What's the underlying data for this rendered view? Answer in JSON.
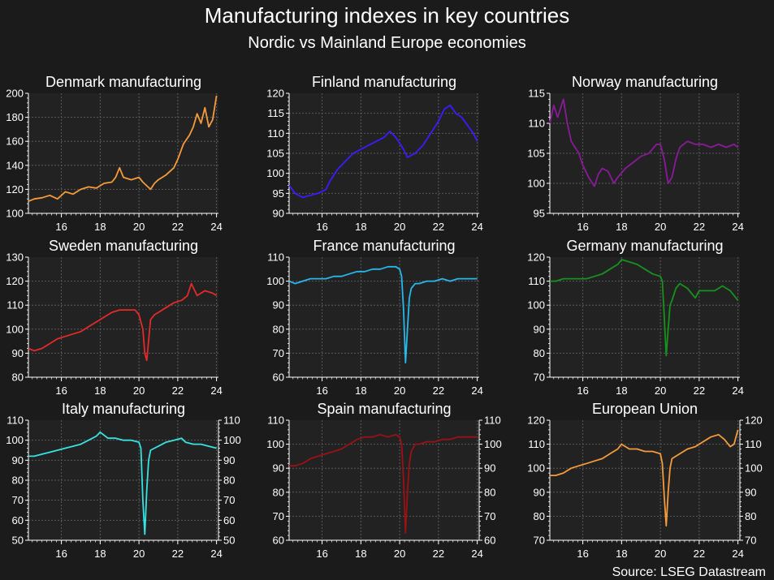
{
  "header": {
    "title": "Manufacturing indexes in key countries",
    "subtitle": "Nordic vs Mainland Europe economies"
  },
  "footer": {
    "source": "Source: LSEG Datastream"
  },
  "colors": {
    "background": "#1b1b1b",
    "plot_background": "#222222",
    "grid": "#5a5a5a",
    "text": "#ffffff"
  },
  "chart_data": [
    {
      "type": "line",
      "title": "Denmark manufacturing",
      "color": "#f59b3b",
      "ylim": [
        100,
        200
      ],
      "yticks": [
        100,
        120,
        140,
        160,
        180,
        200
      ],
      "xlim": [
        14.3,
        24.1
      ],
      "xticks": [
        16,
        18,
        20,
        22,
        24
      ],
      "right_axis": false,
      "grid": true,
      "x": [
        14.3,
        14.6,
        15.0,
        15.4,
        15.8,
        16.2,
        16.6,
        17.0,
        17.4,
        17.8,
        18.2,
        18.6,
        18.8,
        19.0,
        19.2,
        19.6,
        20.0,
        20.2,
        20.4,
        20.6,
        20.8,
        21.0,
        21.4,
        21.8,
        22.0,
        22.3,
        22.6,
        22.8,
        23.0,
        23.2,
        23.4,
        23.6,
        23.8,
        24.0
      ],
      "y": [
        110,
        112,
        113,
        115,
        112,
        118,
        116,
        120,
        122,
        121,
        125,
        126,
        130,
        138,
        130,
        128,
        130,
        126,
        123,
        120,
        125,
        128,
        132,
        138,
        145,
        158,
        165,
        172,
        183,
        175,
        188,
        172,
        178,
        198
      ]
    },
    {
      "type": "line",
      "title": "Finland manufacturing",
      "color": "#3a1cff",
      "ylim": [
        90,
        120
      ],
      "yticks": [
        90,
        95,
        100,
        105,
        110,
        115,
        120
      ],
      "xlim": [
        14.3,
        24.1
      ],
      "xticks": [
        16,
        18,
        20,
        22,
        24
      ],
      "right_axis": false,
      "grid": true,
      "x": [
        14.3,
        14.6,
        15.0,
        15.4,
        15.8,
        16.2,
        16.4,
        16.8,
        17.2,
        17.6,
        18.0,
        18.4,
        18.8,
        19.2,
        19.5,
        19.8,
        20.2,
        20.4,
        20.8,
        21.2,
        21.6,
        22.0,
        22.3,
        22.6,
        22.9,
        23.2,
        23.5,
        23.8,
        24.0
      ],
      "y": [
        97,
        95,
        94,
        94.5,
        95,
        96,
        98,
        101,
        103,
        105,
        106,
        107,
        108,
        109,
        110.5,
        109,
        106,
        104,
        105,
        107,
        110,
        113,
        116,
        117,
        115,
        114,
        112,
        110,
        108
      ]
    },
    {
      "type": "line",
      "title": "Norway manufacturing",
      "color": "#8b1a9b",
      "ylim": [
        95,
        115
      ],
      "yticks": [
        95,
        100,
        105,
        110,
        115
      ],
      "xlim": [
        14.3,
        24.1
      ],
      "xticks": [
        16,
        18,
        20,
        22,
        24
      ],
      "right_axis": false,
      "grid": true,
      "x": [
        14.3,
        14.5,
        14.7,
        15.0,
        15.2,
        15.4,
        15.6,
        15.8,
        16.0,
        16.3,
        16.6,
        16.8,
        17.0,
        17.3,
        17.6,
        17.8,
        18.2,
        18.6,
        19.0,
        19.4,
        19.8,
        20.0,
        20.2,
        20.4,
        20.6,
        20.8,
        21.0,
        21.4,
        21.8,
        22.2,
        22.6,
        23.0,
        23.4,
        23.8,
        24.0
      ],
      "y": [
        110,
        113,
        111,
        114,
        110,
        107,
        106,
        105,
        103,
        101,
        99.5,
        101.5,
        102.5,
        102,
        100,
        101,
        102.5,
        103.5,
        104.5,
        105,
        106.5,
        106.5,
        104,
        100,
        101,
        104,
        106,
        107,
        106.5,
        106.5,
        106,
        106.5,
        106,
        106.5,
        106
      ]
    },
    {
      "type": "line",
      "title": "Sweden manufacturing",
      "color": "#e42a2a",
      "ylim": [
        80,
        130
      ],
      "yticks": [
        80,
        90,
        100,
        110,
        120,
        130
      ],
      "xlim": [
        14.3,
        24.1
      ],
      "xticks": [
        16,
        18,
        20,
        22,
        24
      ],
      "right_axis": false,
      "grid": true,
      "x": [
        14.3,
        14.6,
        15.0,
        15.4,
        15.8,
        16.2,
        16.6,
        17.0,
        17.4,
        17.8,
        18.2,
        18.6,
        19.0,
        19.4,
        19.8,
        20.0,
        20.2,
        20.3,
        20.4,
        20.6,
        20.8,
        21.0,
        21.4,
        21.8,
        22.2,
        22.5,
        22.7,
        23.0,
        23.4,
        23.8,
        24.0
      ],
      "y": [
        92,
        91,
        92,
        94,
        96,
        97,
        98,
        99,
        101,
        103,
        105,
        107,
        108,
        108,
        108,
        106,
        100,
        90,
        87,
        104,
        106,
        107,
        109,
        111,
        112,
        114,
        119,
        114,
        116,
        115,
        114
      ]
    },
    {
      "type": "line",
      "title": "France manufacturing",
      "color": "#27b8ec",
      "ylim": [
        60,
        110
      ],
      "yticks": [
        60,
        70,
        80,
        90,
        100,
        110
      ],
      "xlim": [
        14.3,
        24.1
      ],
      "xticks": [
        16,
        18,
        20,
        22,
        24
      ],
      "right_axis": false,
      "grid": true,
      "x": [
        14.3,
        14.6,
        15.0,
        15.4,
        15.8,
        16.2,
        16.6,
        17.0,
        17.4,
        17.8,
        18.2,
        18.6,
        19.0,
        19.4,
        19.8,
        20.0,
        20.1,
        20.2,
        20.3,
        20.4,
        20.5,
        20.6,
        20.8,
        21.0,
        21.4,
        21.8,
        22.2,
        22.6,
        23.0,
        23.4,
        23.8,
        24.0
      ],
      "y": [
        100,
        99,
        100,
        101,
        101,
        101,
        102,
        102,
        103,
        104,
        104,
        105,
        105,
        106,
        106,
        105,
        102,
        88,
        66,
        80,
        93,
        97,
        99,
        99,
        100,
        100,
        101,
        100,
        101,
        101,
        101,
        101
      ]
    },
    {
      "type": "line",
      "title": "Germany manufacturing",
      "color": "#16921d",
      "ylim": [
        70,
        120
      ],
      "yticks": [
        70,
        80,
        90,
        100,
        110,
        120
      ],
      "xlim": [
        14.3,
        24.1
      ],
      "xticks": [
        16,
        18,
        20,
        22,
        24
      ],
      "right_axis": false,
      "grid": true,
      "x": [
        14.3,
        14.6,
        15.0,
        15.4,
        15.8,
        16.2,
        16.6,
        17.0,
        17.4,
        17.8,
        18.0,
        18.4,
        18.8,
        19.2,
        19.6,
        20.0,
        20.1,
        20.2,
        20.3,
        20.4,
        20.5,
        20.6,
        20.8,
        21.0,
        21.4,
        21.8,
        22.0,
        22.4,
        22.8,
        23.2,
        23.6,
        24.0
      ],
      "y": [
        110,
        110,
        111,
        111,
        111,
        111,
        112,
        113,
        115,
        117,
        119,
        118,
        117,
        115,
        113,
        112,
        110,
        95,
        79,
        90,
        100,
        102,
        107,
        109,
        107,
        103,
        106,
        106,
        106,
        108,
        106,
        102
      ]
    },
    {
      "type": "line",
      "title": "Italy manufacturing",
      "color": "#36e3e3",
      "ylim": [
        50,
        110
      ],
      "yticks": [
        50,
        60,
        70,
        80,
        90,
        100,
        110
      ],
      "xlim": [
        14.3,
        24.1
      ],
      "xticks": [
        16,
        18,
        20,
        22,
        24
      ],
      "right_axis": true,
      "grid": true,
      "x": [
        14.3,
        14.6,
        15.0,
        15.4,
        15.8,
        16.2,
        16.6,
        17.0,
        17.4,
        17.8,
        18.0,
        18.4,
        18.8,
        19.2,
        19.6,
        20.0,
        20.1,
        20.2,
        20.3,
        20.4,
        20.5,
        20.6,
        20.8,
        21.0,
        21.4,
        21.8,
        22.2,
        22.4,
        22.8,
        23.2,
        23.6,
        24.0
      ],
      "y": [
        92,
        92,
        93,
        94,
        95,
        96,
        97,
        98,
        100,
        102,
        104,
        101,
        101,
        100,
        100,
        99,
        96,
        70,
        53,
        75,
        90,
        95,
        96,
        97,
        99,
        100,
        101,
        99,
        98,
        98,
        97,
        96
      ]
    },
    {
      "type": "line",
      "title": "Spain manufacturing",
      "color": "#9c1115",
      "ylim": [
        60,
        110
      ],
      "yticks": [
        60,
        70,
        80,
        90,
        100,
        110
      ],
      "xlim": [
        14.3,
        24.1
      ],
      "xticks": [
        16,
        18,
        20,
        22,
        24
      ],
      "right_axis": true,
      "grid": true,
      "x": [
        14.3,
        14.6,
        15.0,
        15.4,
        15.8,
        16.2,
        16.6,
        17.0,
        17.4,
        17.8,
        18.2,
        18.6,
        19.0,
        19.4,
        19.8,
        20.0,
        20.1,
        20.2,
        20.3,
        20.4,
        20.5,
        20.6,
        20.8,
        21.0,
        21.4,
        21.8,
        22.2,
        22.6,
        23.0,
        23.4,
        23.8,
        24.0
      ],
      "y": [
        91,
        91,
        92,
        94,
        95,
        96,
        97,
        98,
        100,
        102,
        103,
        103,
        104,
        103,
        104,
        103,
        100,
        85,
        63,
        80,
        92,
        97,
        100,
        100,
        101,
        101,
        102,
        102,
        103,
        103,
        103,
        103
      ]
    },
    {
      "type": "line",
      "title": "European Union",
      "color": "#f59b3b",
      "ylim": [
        70,
        120
      ],
      "yticks": [
        70,
        80,
        90,
        100,
        110,
        120
      ],
      "xlim": [
        14.3,
        24.1
      ],
      "xticks": [
        16,
        18,
        20,
        22,
        24
      ],
      "right_axis": true,
      "grid": true,
      "x": [
        14.3,
        14.6,
        15.0,
        15.4,
        15.8,
        16.2,
        16.6,
        17.0,
        17.4,
        17.8,
        18.0,
        18.4,
        18.8,
        19.2,
        19.6,
        20.0,
        20.1,
        20.2,
        20.3,
        20.4,
        20.5,
        20.6,
        20.8,
        21.0,
        21.4,
        21.8,
        22.2,
        22.6,
        23.0,
        23.3,
        23.6,
        23.8,
        24.0
      ],
      "y": [
        97,
        97,
        98,
        100,
        101,
        102,
        103,
        104,
        106,
        108,
        110,
        108,
        108,
        107,
        107,
        106,
        102,
        88,
        76,
        90,
        100,
        104,
        105,
        106,
        108,
        109,
        111,
        113,
        114,
        112,
        109,
        110,
        116
      ]
    }
  ]
}
